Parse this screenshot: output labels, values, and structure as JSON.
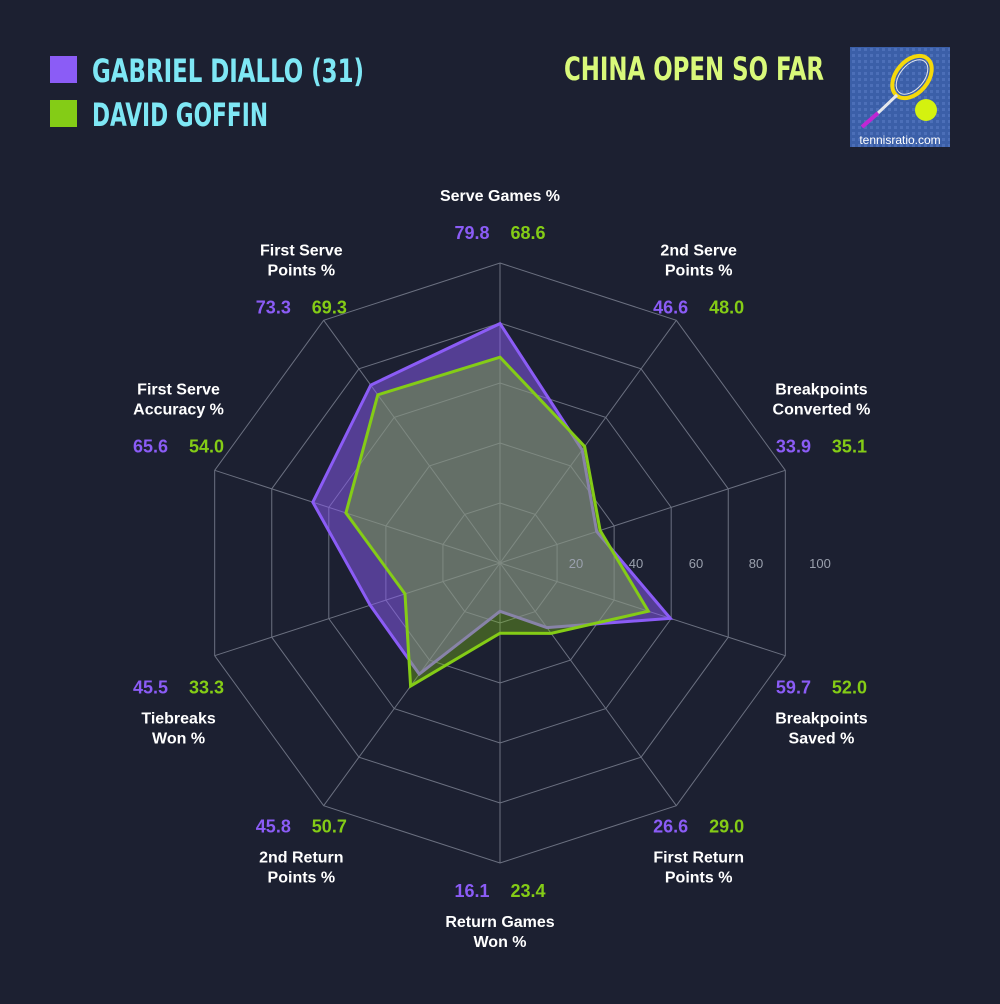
{
  "header": {
    "title": "CHINA OPEN SO FAR",
    "logo_text": "tennisratio.com"
  },
  "colors": {
    "background": "#1c2031",
    "player1": "#8b5cf6",
    "player2": "#84cc16",
    "legend_text": "#7ee7f5",
    "title": "#d9f97a",
    "grid": "#6b7080",
    "label": "#ffffff"
  },
  "chart_data": {
    "type": "radar",
    "rlim": [
      0,
      100
    ],
    "ticks": [
      "20",
      "40",
      "60",
      "80",
      "100"
    ],
    "tick_values": [
      20,
      40,
      60,
      80,
      100
    ],
    "legend_position": "top-left",
    "series": [
      {
        "name": "GABRIEL DIALLO (31)",
        "values": [
          79.8,
          46.6,
          33.9,
          59.7,
          26.6,
          16.1,
          45.8,
          45.5,
          65.6,
          73.3
        ]
      },
      {
        "name": "DAVID GOFFIN",
        "values": [
          68.6,
          48.0,
          35.1,
          52.0,
          29.0,
          23.4,
          50.7,
          33.3,
          54.0,
          69.3
        ]
      }
    ],
    "categories": [
      {
        "lines": [
          "Serve Games %"
        ],
        "p1": "79.8",
        "p2": "68.6"
      },
      {
        "lines": [
          "2nd Serve",
          "Points %"
        ],
        "p1": "46.6",
        "p2": "48.0"
      },
      {
        "lines": [
          "Breakpoints",
          "Converted %"
        ],
        "p1": "33.9",
        "p2": "35.1"
      },
      {
        "lines": [
          "Breakpoints",
          "Saved %"
        ],
        "p1": "59.7",
        "p2": "52.0"
      },
      {
        "lines": [
          "First Return",
          "Points %"
        ],
        "p1": "26.6",
        "p2": "29.0"
      },
      {
        "lines": [
          "Return Games",
          "Won %"
        ],
        "p1": "16.1",
        "p2": "23.4"
      },
      {
        "lines": [
          "2nd Return",
          "Points %"
        ],
        "p1": "45.8",
        "p2": "50.7"
      },
      {
        "lines": [
          "Tiebreaks",
          "Won %"
        ],
        "p1": "45.5",
        "p2": "33.3"
      },
      {
        "lines": [
          "First Serve",
          "Accuracy %"
        ],
        "p1": "65.6",
        "p2": "54.0"
      },
      {
        "lines": [
          "First Serve",
          "Points %"
        ],
        "p1": "73.3",
        "p2": "69.3"
      }
    ]
  }
}
